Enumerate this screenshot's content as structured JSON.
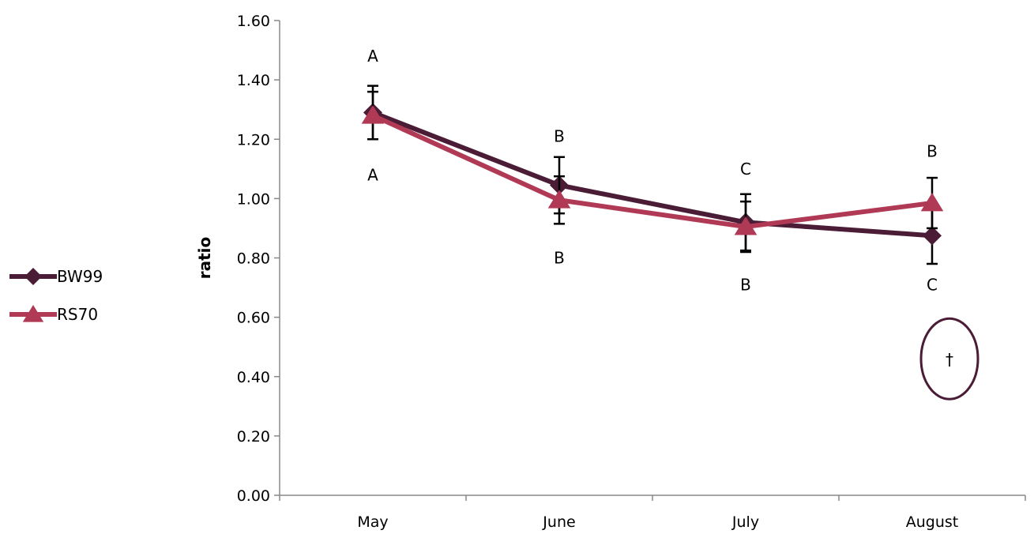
{
  "chart_data": {
    "type": "line",
    "title": "",
    "xlabel": "",
    "ylabel": "ratio",
    "categories": [
      "May",
      "June",
      "July",
      "August"
    ],
    "ylim": [
      0,
      1.6
    ],
    "yticks": [
      "0.00",
      "0.20",
      "0.40",
      "0.60",
      "0.80",
      "1.00",
      "1.20",
      "1.40",
      "1.60"
    ],
    "legend_position": "left",
    "grid": false,
    "series": [
      {
        "name": "BW99",
        "color": "#4a1c35",
        "marker": "diamond",
        "values": [
          1.29,
          1.045,
          0.92,
          0.875
        ],
        "error": [
          0.09,
          0.095,
          0.095,
          0.095
        ],
        "letters": [
          "A",
          "B",
          "C",
          "C"
        ]
      },
      {
        "name": "RS70",
        "color": "#b03a55",
        "marker": "triangle",
        "values": [
          1.28,
          0.995,
          0.905,
          0.985
        ],
        "error": [
          0.08,
          0.08,
          0.085,
          0.085
        ],
        "letters": [
          "A",
          "B",
          "B",
          "B"
        ]
      }
    ],
    "annotations": [
      {
        "text": "A",
        "category": "May",
        "value": 1.48
      },
      {
        "text": "A",
        "category": "May",
        "value": 1.08
      },
      {
        "text": "B",
        "category": "June",
        "value": 1.21
      },
      {
        "text": "B",
        "category": "June",
        "value": 0.8
      },
      {
        "text": "C",
        "category": "July",
        "value": 1.1
      },
      {
        "text": "B",
        "category": "July",
        "value": 0.71
      },
      {
        "text": "B",
        "category": "August",
        "value": 1.16
      },
      {
        "text": "C",
        "category": "August",
        "value": 0.71
      }
    ],
    "dagger": {
      "text": "†",
      "category": "August",
      "value": 0.46,
      "ring_color": "#4a1c35"
    }
  }
}
